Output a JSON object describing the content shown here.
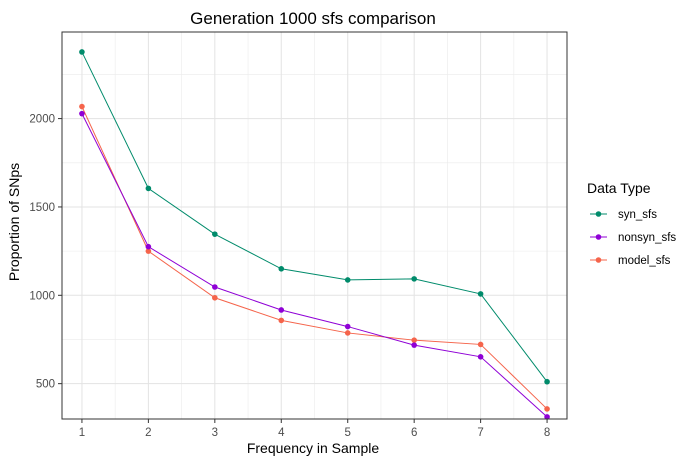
{
  "chart_data": {
    "type": "line",
    "title": "Generation 1000 sfs comparison",
    "xlabel": "Frequency in Sample",
    "ylabel": "Proportion of SNps",
    "x": [
      1,
      2,
      3,
      4,
      5,
      6,
      7,
      8
    ],
    "xlim": [
      0.7,
      8.3
    ],
    "ylim": [
      300,
      2490
    ],
    "yticks": [
      500,
      1000,
      1500,
      2000
    ],
    "grid": true,
    "legend": {
      "title": "Data Type",
      "placement": "right"
    },
    "series": [
      {
        "name": "syn_sfs",
        "color": "#008b6b",
        "values": [
          2377,
          1605,
          1346,
          1150,
          1087,
          1093,
          1008,
          511
        ]
      },
      {
        "name": "nonsyn_sfs",
        "color": "#8f00d6",
        "values": [
          2028,
          1275,
          1047,
          917,
          823,
          718,
          652,
          312
        ]
      },
      {
        "name": "model_sfs",
        "color": "#f5644b",
        "values": [
          2068,
          1250,
          986,
          858,
          787,
          746,
          722,
          357
        ]
      }
    ]
  }
}
